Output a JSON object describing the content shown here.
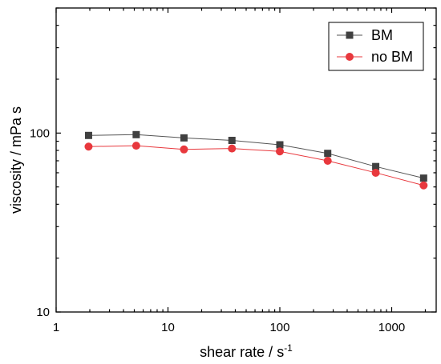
{
  "chart_data": {
    "type": "line",
    "xscale": "log",
    "yscale": "log",
    "xlim": [
      1,
      2500
    ],
    "ylim": [
      10,
      500
    ],
    "xlabel": "shear rate / s",
    "xlabel_superscript": "-1",
    "ylabel": "viscosity / mPa s",
    "xticks": [
      1,
      10,
      100,
      1000
    ],
    "xtick_labels": [
      "1",
      "10",
      "100",
      "1000"
    ],
    "yticks": [
      10,
      100
    ],
    "ytick_labels": [
      "10",
      "100"
    ],
    "legend_placement": "top-right",
    "grid": false,
    "series": [
      {
        "name": "BM",
        "marker": "square",
        "color": "#404040",
        "line_color": "#555555",
        "x": [
          1.95,
          5.2,
          13.9,
          37.3,
          100,
          268,
          720,
          1930
        ],
        "y": [
          97,
          98,
          94,
          91,
          86,
          77,
          65,
          56
        ]
      },
      {
        "name": "no BM",
        "marker": "circle",
        "color": "#e8383d",
        "line_color": "#e8383d",
        "x": [
          1.95,
          5.2,
          13.9,
          37.3,
          100,
          268,
          720,
          1930
        ],
        "y": [
          84,
          85,
          81,
          82,
          79,
          70,
          60,
          51
        ]
      }
    ]
  }
}
